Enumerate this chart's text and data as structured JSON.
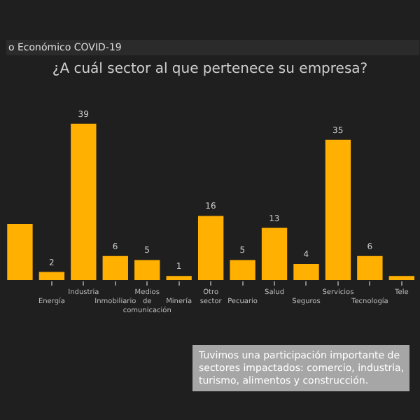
{
  "chart_data": {
    "type": "bar",
    "title": "¿A cuál sector al que pertenece su empresa?",
    "categories": [
      null,
      "Energía",
      "Industria",
      "Inmobiliario",
      "Medios de comunicación",
      "Minería",
      "Otro sector",
      "Pecuario",
      "Salud",
      "Seguros",
      "Servicios",
      "Tecnología",
      "Tele"
    ],
    "values": [
      14,
      2,
      39,
      6,
      5,
      1,
      16,
      5,
      13,
      4,
      35,
      6,
      1
    ],
    "value_labels": [
      null,
      "2",
      "39",
      "6",
      "5",
      "1",
      "16",
      "5",
      "13",
      "4",
      "35",
      "6",
      null
    ],
    "color": "#ffb000",
    "annotations": [
      "o Económico COVID-19",
      "Tuvimos una participación importante de sectores impactados: comercio, industria, turismo, alimentos y construcción."
    ]
  }
}
